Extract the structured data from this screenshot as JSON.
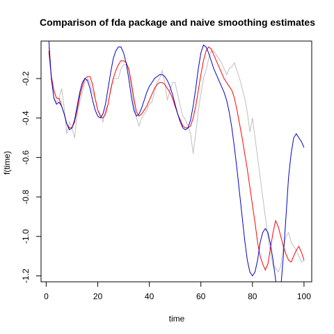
{
  "chart_data": {
    "type": "line",
    "title": "Comparison of fda package and naive smoothing estimates",
    "xlabel": "time",
    "ylabel": "f(time)",
    "xlim": [
      -2,
      103
    ],
    "ylim": [
      -1.23,
      -0.01
    ],
    "xticks": [
      0,
      20,
      40,
      60,
      80,
      100
    ],
    "yticks": [
      -0.2,
      -0.4,
      -0.6,
      -0.8,
      -1.0,
      -1.2
    ],
    "ytick_labels": [
      "-0.2",
      "-0.4",
      "-0.6",
      "-0.8",
      "-1.0",
      "-1.2"
    ],
    "grid": false,
    "legend": "none",
    "series": [
      {
        "color": "#bebebe",
        "x": [
          1,
          2,
          3,
          4,
          5,
          6,
          7,
          8,
          9,
          10,
          11,
          12,
          13,
          14,
          15,
          16,
          17,
          18,
          19,
          20,
          21,
          22,
          23,
          24,
          25,
          26,
          27,
          28,
          29,
          30,
          31,
          32,
          33,
          34,
          35,
          36,
          37,
          38,
          39,
          40,
          41,
          42,
          43,
          44,
          45,
          46,
          47,
          48,
          49,
          50,
          51,
          52,
          53,
          54,
          55,
          56,
          57,
          58,
          59,
          60,
          61,
          62,
          63,
          64,
          65,
          66,
          67,
          68,
          69,
          70,
          71,
          72,
          73,
          74,
          75,
          76,
          77,
          78,
          79,
          80,
          81,
          82,
          83,
          84,
          85,
          86,
          87,
          88,
          89,
          90,
          91,
          92,
          93,
          94,
          95,
          96,
          97,
          98,
          99,
          100
        ],
        "y": [
          -0.04,
          -0.2,
          -0.3,
          -0.32,
          -0.3,
          -0.25,
          -0.35,
          -0.48,
          -0.42,
          -0.45,
          -0.5,
          -0.38,
          -0.32,
          -0.27,
          -0.22,
          -0.2,
          -0.22,
          -0.27,
          -0.3,
          -0.36,
          -0.38,
          -0.42,
          -0.36,
          -0.33,
          -0.25,
          -0.2,
          -0.2,
          -0.2,
          -0.15,
          -0.13,
          -0.13,
          -0.16,
          -0.24,
          -0.33,
          -0.4,
          -0.44,
          -0.4,
          -0.38,
          -0.36,
          -0.33,
          -0.32,
          -0.27,
          -0.22,
          -0.2,
          -0.16,
          -0.22,
          -0.31,
          -0.26,
          -0.22,
          -0.22,
          -0.28,
          -0.34,
          -0.39,
          -0.41,
          -0.44,
          -0.48,
          -0.58,
          -0.48,
          -0.36,
          -0.28,
          -0.2,
          -0.16,
          -0.1,
          -0.06,
          -0.06,
          -0.08,
          -0.1,
          -0.12,
          -0.15,
          -0.18,
          -0.15,
          -0.14,
          -0.12,
          -0.16,
          -0.2,
          -0.25,
          -0.3,
          -0.37,
          -0.47,
          -0.4,
          -0.5,
          -0.6,
          -0.7,
          -0.8,
          -0.9,
          -1.0,
          -1.08,
          -1.15,
          -1.16,
          -1.18,
          -1.15,
          -1.05,
          -1.0,
          -0.98,
          -1.03,
          -1.05,
          -1.07,
          -1.1,
          -1.13,
          -1.12
        ]
      },
      {
        "color": "#ff0000",
        "x": [
          1,
          2,
          3,
          4,
          5,
          6,
          7,
          8,
          9,
          10,
          11,
          12,
          13,
          14,
          15,
          16,
          17,
          18,
          19,
          20,
          21,
          22,
          23,
          24,
          25,
          26,
          27,
          28,
          29,
          30,
          31,
          32,
          33,
          34,
          35,
          36,
          37,
          38,
          39,
          40,
          41,
          42,
          43,
          44,
          45,
          46,
          47,
          48,
          49,
          50,
          51,
          52,
          53,
          54,
          55,
          56,
          57,
          58,
          59,
          60,
          61,
          62,
          63,
          64,
          65,
          66,
          67,
          68,
          69,
          70,
          71,
          72,
          73,
          74,
          75,
          76,
          77,
          78,
          79,
          80,
          81,
          82,
          83,
          84,
          85,
          86,
          87,
          88,
          89,
          90,
          91,
          92,
          93,
          94,
          95,
          96,
          97,
          98,
          99,
          100
        ],
        "y": [
          -0.06,
          -0.19,
          -0.26,
          -0.3,
          -0.3,
          -0.34,
          -0.38,
          -0.43,
          -0.45,
          -0.45,
          -0.42,
          -0.36,
          -0.29,
          -0.24,
          -0.2,
          -0.19,
          -0.19,
          -0.23,
          -0.3,
          -0.36,
          -0.39,
          -0.4,
          -0.38,
          -0.33,
          -0.26,
          -0.2,
          -0.16,
          -0.13,
          -0.11,
          -0.11,
          -0.12,
          -0.15,
          -0.22,
          -0.3,
          -0.37,
          -0.39,
          -0.38,
          -0.36,
          -0.34,
          -0.31,
          -0.28,
          -0.25,
          -0.23,
          -0.22,
          -0.22,
          -0.23,
          -0.25,
          -0.27,
          -0.3,
          -0.34,
          -0.38,
          -0.41,
          -0.44,
          -0.45,
          -0.45,
          -0.44,
          -0.4,
          -0.34,
          -0.26,
          -0.18,
          -0.11,
          -0.06,
          -0.04,
          -0.05,
          -0.08,
          -0.11,
          -0.14,
          -0.17,
          -0.2,
          -0.22,
          -0.24,
          -0.26,
          -0.3,
          -0.36,
          -0.43,
          -0.5,
          -0.58,
          -0.66,
          -0.75,
          -0.84,
          -0.93,
          -1.03,
          -1.1,
          -1.14,
          -1.17,
          -1.14,
          -1.06,
          -0.98,
          -0.92,
          -0.95,
          -1.0,
          -1.05,
          -1.09,
          -1.12,
          -1.13,
          -1.1,
          -1.07,
          -1.05,
          -1.08,
          -1.12
        ]
      },
      {
        "color": "#0000cd",
        "x": [
          1,
          2,
          3,
          4,
          5,
          6,
          7,
          8,
          9,
          10,
          11,
          12,
          13,
          14,
          15,
          16,
          17,
          18,
          19,
          20,
          21,
          22,
          23,
          24,
          25,
          26,
          27,
          28,
          29,
          30,
          31,
          32,
          33,
          34,
          35,
          36,
          37,
          38,
          39,
          40,
          41,
          42,
          43,
          44,
          45,
          46,
          47,
          48,
          49,
          50,
          51,
          52,
          53,
          54,
          55,
          56,
          57,
          58,
          59,
          60,
          61,
          62,
          63,
          64,
          65,
          66,
          67,
          68,
          69,
          70,
          71,
          72,
          73,
          74,
          75,
          76,
          77,
          78,
          79,
          80,
          81,
          82,
          83,
          84,
          85,
          86,
          87,
          88,
          89,
          90,
          91,
          92,
          93,
          94,
          95,
          96,
          97,
          98,
          99,
          100
        ],
        "y": [
          0.0,
          -0.2,
          -0.3,
          -0.33,
          -0.32,
          -0.34,
          -0.38,
          -0.43,
          -0.46,
          -0.45,
          -0.41,
          -0.34,
          -0.27,
          -0.22,
          -0.2,
          -0.21,
          -0.25,
          -0.31,
          -0.36,
          -0.39,
          -0.4,
          -0.38,
          -0.33,
          -0.25,
          -0.17,
          -0.1,
          -0.06,
          -0.04,
          -0.04,
          -0.07,
          -0.12,
          -0.2,
          -0.29,
          -0.36,
          -0.39,
          -0.38,
          -0.35,
          -0.31,
          -0.27,
          -0.24,
          -0.22,
          -0.2,
          -0.19,
          -0.18,
          -0.18,
          -0.19,
          -0.21,
          -0.24,
          -0.28,
          -0.33,
          -0.38,
          -0.42,
          -0.45,
          -0.46,
          -0.45,
          -0.41,
          -0.34,
          -0.25,
          -0.15,
          -0.07,
          -0.03,
          -0.04,
          -0.07,
          -0.11,
          -0.15,
          -0.18,
          -0.21,
          -0.24,
          -0.27,
          -0.31,
          -0.37,
          -0.45,
          -0.55,
          -0.66,
          -0.78,
          -0.9,
          -1.02,
          -1.12,
          -1.18,
          -1.2,
          -1.18,
          -1.12,
          -1.03,
          -0.98,
          -0.96,
          -0.98,
          -1.04,
          -1.12,
          -1.22,
          -1.3,
          -1.26,
          -1.1,
          -0.9,
          -0.7,
          -0.58,
          -0.5,
          -0.48,
          -0.5,
          -0.52,
          -0.55
        ]
      }
    ]
  }
}
